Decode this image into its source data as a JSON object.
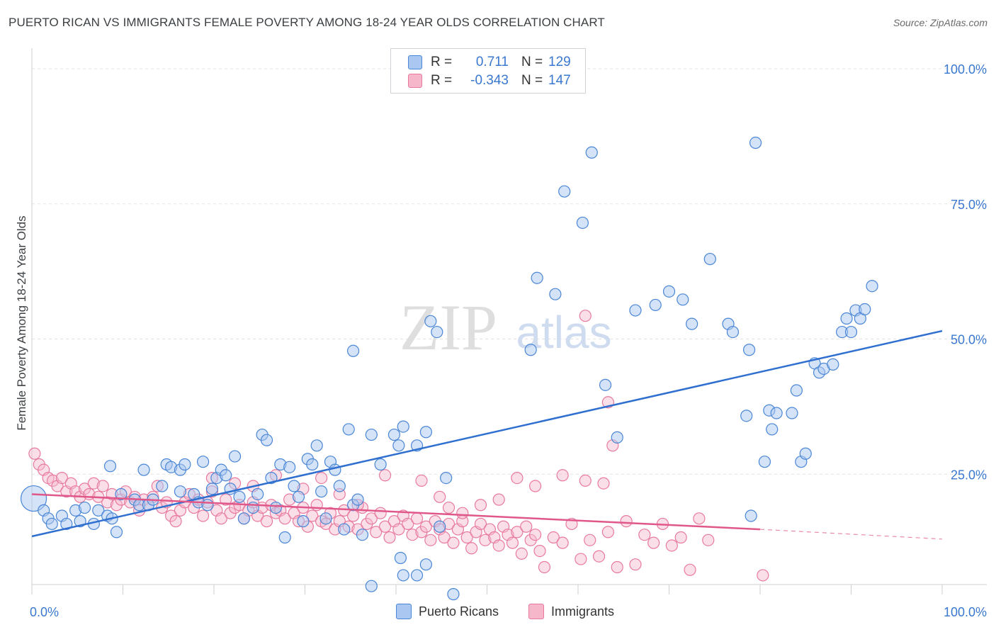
{
  "title": "PUERTO RICAN VS IMMIGRANTS FEMALE POVERTY AMONG 18-24 YEAR OLDS CORRELATION CHART",
  "source": "Source: ZipAtlas.com",
  "watermark": {
    "zip": "ZIP",
    "atlas": "atlas"
  },
  "legend_box": {
    "rows": [
      {
        "r_label": "R =",
        "r_value": "0.711",
        "n_label": "N =",
        "n_value": "129"
      },
      {
        "r_label": "R =",
        "r_value": "-0.343",
        "n_label": "N =",
        "n_value": "147"
      }
    ]
  },
  "bottom_legend": {
    "series1": "Puerto Ricans",
    "series2": "Immigrants"
  },
  "colors": {
    "blue_fill": "#a9c7f0",
    "blue_stroke": "#4a86d6",
    "blue_line": "#2f6fd0",
    "pink_fill": "#f6b7cb",
    "pink_stroke": "#e87a9e",
    "pink_line": "#e0588a",
    "grid": "#e3e3e3",
    "axis_label": "#3a78d0"
  },
  "chart_data": {
    "type": "scatter",
    "title": "PUERTO RICAN VS IMMIGRANTS FEMALE POVERTY AMONG 18-24 YEAR OLDS CORRELATION CHART",
    "xlabel": "",
    "ylabel": "Female Poverty Among 18-24 Year Olds",
    "xlim": [
      0,
      100
    ],
    "ylim": [
      0,
      100
    ],
    "x_tick_labels": [
      "0.0%",
      "100.0%"
    ],
    "y_tick_labels": [
      "25.0%",
      "50.0%",
      "75.0%",
      "100.0%"
    ],
    "y_ticks": [
      25,
      50,
      75,
      100
    ],
    "grid": true,
    "legend_position": "top-center",
    "series": [
      {
        "name": "Puerto Ricans",
        "r": 0.711,
        "n": 129,
        "trend": {
          "x": [
            0,
            100
          ],
          "y": [
            13.5,
            51.5
          ]
        },
        "points": [
          [
            0.2,
            20.5
          ],
          [
            1.3,
            18.3
          ],
          [
            1.8,
            16.8
          ],
          [
            2.2,
            15.8
          ],
          [
            3.3,
            17.3
          ],
          [
            3.8,
            15.8
          ],
          [
            4.8,
            18.3
          ],
          [
            5.3,
            16.3
          ],
          [
            5.8,
            18.8
          ],
          [
            6.8,
            15.8
          ],
          [
            7.3,
            18.3
          ],
          [
            8.3,
            17.3
          ],
          [
            8.6,
            26.5
          ],
          [
            8.8,
            16.8
          ],
          [
            9.3,
            14.3
          ],
          [
            9.8,
            21.3
          ],
          [
            11.3,
            20.3
          ],
          [
            11.8,
            19.3
          ],
          [
            12.3,
            25.8
          ],
          [
            12.8,
            19.3
          ],
          [
            13.3,
            20.3
          ],
          [
            14.3,
            22.8
          ],
          [
            14.8,
            26.8
          ],
          [
            15.3,
            26.3
          ],
          [
            16.3,
            25.8
          ],
          [
            16.8,
            26.8
          ],
          [
            16.3,
            21.8
          ],
          [
            17.8,
            21.3
          ],
          [
            18.3,
            19.8
          ],
          [
            18.8,
            27.3
          ],
          [
            19.3,
            19.3
          ],
          [
            19.8,
            22.3
          ],
          [
            20.3,
            24.3
          ],
          [
            20.8,
            25.8
          ],
          [
            21.3,
            24.8
          ],
          [
            21.8,
            22.3
          ],
          [
            22.3,
            28.3
          ],
          [
            22.8,
            20.8
          ],
          [
            23.3,
            16.8
          ],
          [
            24.3,
            18.8
          ],
          [
            24.8,
            21.3
          ],
          [
            25.3,
            32.3
          ],
          [
            25.8,
            31.3
          ],
          [
            26.3,
            24.3
          ],
          [
            26.8,
            18.8
          ],
          [
            27.3,
            26.8
          ],
          [
            27.8,
            13.3
          ],
          [
            28.3,
            26.3
          ],
          [
            28.8,
            22.8
          ],
          [
            29.3,
            20.8
          ],
          [
            29.8,
            16.3
          ],
          [
            30.3,
            27.8
          ],
          [
            30.8,
            26.8
          ],
          [
            31.3,
            30.3
          ],
          [
            31.8,
            21.8
          ],
          [
            32.3,
            16.8
          ],
          [
            32.8,
            27.3
          ],
          [
            33.3,
            25.8
          ],
          [
            33.8,
            22.8
          ],
          [
            34.3,
            14.8
          ],
          [
            34.8,
            33.3
          ],
          [
            35.3,
            19.3
          ],
          [
            35.8,
            20.3
          ],
          [
            36.3,
            13.8
          ],
          [
            37.3,
            32.3
          ],
          [
            38.3,
            26.8
          ],
          [
            39.8,
            32.3
          ],
          [
            40.3,
            30.3
          ],
          [
            40.8,
            33.8
          ],
          [
            42.3,
            30.3
          ],
          [
            43.3,
            32.8
          ],
          [
            43.8,
            53.3
          ],
          [
            44.8,
            15.3
          ],
          [
            40.5,
            9.5
          ],
          [
            40.8,
            6.3
          ],
          [
            42.3,
            6.3
          ],
          [
            43.3,
            8.3
          ],
          [
            46.3,
            2.8
          ],
          [
            37.3,
            4.3
          ],
          [
            35.3,
            47.8
          ],
          [
            44.5,
            51.3
          ],
          [
            54.8,
            48.0
          ],
          [
            55.5,
            61.3
          ],
          [
            57.5,
            58.3
          ],
          [
            58.5,
            77.3
          ],
          [
            60.5,
            71.5
          ],
          [
            61.5,
            84.5
          ],
          [
            63.0,
            41.5
          ],
          [
            64.3,
            31.8
          ],
          [
            66.3,
            55.3
          ],
          [
            68.5,
            56.3
          ],
          [
            70.0,
            58.8
          ],
          [
            71.5,
            57.3
          ],
          [
            72.5,
            52.8
          ],
          [
            74.5,
            64.8
          ],
          [
            76.5,
            52.8
          ],
          [
            77.0,
            51.3
          ],
          [
            78.5,
            35.8
          ],
          [
            78.8,
            48.0
          ],
          [
            79.5,
            86.3
          ],
          [
            80.5,
            27.3
          ],
          [
            81.0,
            36.8
          ],
          [
            81.3,
            33.3
          ],
          [
            81.8,
            36.3
          ],
          [
            83.5,
            36.3
          ],
          [
            84.0,
            40.5
          ],
          [
            84.5,
            27.3
          ],
          [
            85.0,
            28.8
          ],
          [
            86.0,
            45.5
          ],
          [
            86.5,
            43.8
          ],
          [
            87.0,
            44.5
          ],
          [
            88.0,
            45.3
          ],
          [
            89.0,
            51.3
          ],
          [
            89.5,
            53.8
          ],
          [
            90.0,
            51.3
          ],
          [
            90.5,
            55.3
          ],
          [
            91.0,
            53.8
          ],
          [
            91.5,
            55.5
          ],
          [
            92.3,
            59.8
          ],
          [
            79.0,
            17.3
          ],
          [
            45.5,
            24.3
          ]
        ]
      },
      {
        "name": "Immigrants",
        "r": -0.343,
        "n": 147,
        "trend": {
          "x": [
            0,
            80
          ],
          "y": [
            21.3,
            14.8
          ]
        },
        "trend_dashed": {
          "x": [
            80,
            100
          ],
          "y": [
            14.8,
            13.0
          ]
        },
        "points": [
          [
            0.3,
            28.8
          ],
          [
            0.8,
            26.8
          ],
          [
            1.3,
            25.8
          ],
          [
            1.8,
            24.3
          ],
          [
            2.3,
            23.8
          ],
          [
            2.8,
            22.8
          ],
          [
            3.3,
            24.3
          ],
          [
            3.8,
            21.8
          ],
          [
            4.3,
            23.3
          ],
          [
            4.8,
            21.8
          ],
          [
            5.3,
            20.8
          ],
          [
            5.8,
            22.3
          ],
          [
            6.3,
            21.3
          ],
          [
            6.8,
            23.3
          ],
          [
            7.3,
            20.8
          ],
          [
            7.8,
            22.8
          ],
          [
            8.3,
            19.8
          ],
          [
            8.8,
            21.3
          ],
          [
            9.3,
            19.3
          ],
          [
            9.8,
            20.3
          ],
          [
            10.3,
            21.8
          ],
          [
            10.8,
            19.8
          ],
          [
            11.3,
            20.8
          ],
          [
            11.8,
            18.3
          ],
          [
            12.3,
            20.3
          ],
          [
            12.8,
            19.3
          ],
          [
            13.3,
            20.8
          ],
          [
            13.8,
            22.8
          ],
          [
            14.3,
            18.8
          ],
          [
            14.8,
            19.8
          ],
          [
            15.3,
            17.3
          ],
          [
            15.8,
            16.3
          ],
          [
            16.3,
            18.3
          ],
          [
            16.8,
            19.8
          ],
          [
            17.3,
            21.3
          ],
          [
            17.8,
            18.8
          ],
          [
            18.3,
            20.3
          ],
          [
            18.8,
            17.3
          ],
          [
            19.3,
            19.8
          ],
          [
            19.8,
            21.8
          ],
          [
            20.3,
            18.3
          ],
          [
            20.8,
            16.8
          ],
          [
            21.3,
            20.3
          ],
          [
            21.8,
            17.8
          ],
          [
            22.3,
            18.8
          ],
          [
            22.8,
            19.3
          ],
          [
            23.3,
            16.8
          ],
          [
            23.8,
            18.3
          ],
          [
            24.3,
            19.8
          ],
          [
            24.8,
            17.3
          ],
          [
            25.3,
            18.8
          ],
          [
            25.8,
            16.3
          ],
          [
            26.3,
            19.3
          ],
          [
            26.8,
            17.8
          ],
          [
            27.3,
            18.3
          ],
          [
            27.8,
            16.8
          ],
          [
            28.3,
            20.3
          ],
          [
            28.8,
            17.8
          ],
          [
            29.3,
            16.3
          ],
          [
            29.8,
            18.8
          ],
          [
            30.3,
            15.3
          ],
          [
            30.8,
            17.3
          ],
          [
            31.3,
            19.3
          ],
          [
            31.8,
            16.3
          ],
          [
            32.3,
            15.8
          ],
          [
            32.8,
            17.8
          ],
          [
            33.3,
            14.8
          ],
          [
            33.8,
            16.3
          ],
          [
            34.3,
            18.3
          ],
          [
            34.8,
            15.3
          ],
          [
            35.3,
            17.3
          ],
          [
            35.8,
            14.8
          ],
          [
            36.3,
            18.8
          ],
          [
            36.8,
            15.8
          ],
          [
            37.3,
            16.8
          ],
          [
            37.8,
            14.3
          ],
          [
            38.3,
            17.8
          ],
          [
            38.8,
            15.3
          ],
          [
            39.3,
            13.3
          ],
          [
            39.8,
            16.3
          ],
          [
            40.3,
            14.8
          ],
          [
            40.8,
            17.3
          ],
          [
            41.3,
            15.8
          ],
          [
            41.8,
            13.8
          ],
          [
            42.3,
            16.8
          ],
          [
            42.8,
            14.3
          ],
          [
            43.3,
            15.3
          ],
          [
            43.8,
            12.8
          ],
          [
            44.3,
            16.3
          ],
          [
            44.8,
            14.8
          ],
          [
            45.3,
            13.3
          ],
          [
            45.8,
            15.8
          ],
          [
            46.3,
            12.3
          ],
          [
            46.8,
            14.8
          ],
          [
            47.3,
            16.3
          ],
          [
            47.8,
            13.3
          ],
          [
            48.3,
            11.3
          ],
          [
            48.8,
            14.3
          ],
          [
            49.3,
            15.8
          ],
          [
            49.8,
            12.8
          ],
          [
            50.3,
            14.8
          ],
          [
            50.8,
            13.3
          ],
          [
            51.3,
            11.8
          ],
          [
            51.8,
            15.3
          ],
          [
            52.3,
            13.8
          ],
          [
            52.8,
            12.3
          ],
          [
            53.3,
            14.3
          ],
          [
            53.8,
            10.3
          ],
          [
            54.3,
            15.3
          ],
          [
            54.8,
            12.8
          ],
          [
            55.3,
            13.8
          ],
          [
            55.8,
            10.8
          ],
          [
            57.3,
            13.3
          ],
          [
            58.3,
            12.3
          ],
          [
            59.3,
            15.8
          ],
          [
            60.3,
            9.3
          ],
          [
            61.3,
            12.8
          ],
          [
            62.3,
            9.8
          ],
          [
            63.3,
            14.3
          ],
          [
            64.3,
            7.8
          ],
          [
            65.3,
            16.3
          ],
          [
            66.3,
            8.3
          ],
          [
            67.3,
            13.8
          ],
          [
            68.3,
            12.3
          ],
          [
            69.3,
            15.8
          ],
          [
            70.3,
            11.8
          ],
          [
            71.3,
            13.3
          ],
          [
            72.3,
            7.3
          ],
          [
            73.3,
            16.8
          ],
          [
            74.3,
            12.8
          ],
          [
            63.3,
            38.3
          ],
          [
            63.8,
            30.3
          ],
          [
            58.3,
            24.8
          ],
          [
            60.8,
            23.8
          ],
          [
            62.8,
            23.3
          ],
          [
            55.3,
            22.8
          ],
          [
            53.3,
            24.3
          ],
          [
            51.3,
            20.3
          ],
          [
            49.3,
            19.3
          ],
          [
            47.3,
            17.8
          ],
          [
            45.8,
            18.8
          ],
          [
            44.8,
            20.8
          ],
          [
            42.8,
            23.8
          ],
          [
            38.8,
            24.8
          ],
          [
            35.8,
            19.3
          ],
          [
            33.8,
            21.3
          ],
          [
            31.8,
            24.3
          ],
          [
            29.8,
            22.3
          ],
          [
            26.8,
            24.8
          ],
          [
            24.3,
            22.8
          ],
          [
            22.3,
            23.3
          ],
          [
            19.8,
            24.3
          ],
          [
            60.8,
            54.3
          ],
          [
            56.3,
            7.8
          ],
          [
            80.3,
            6.3
          ]
        ]
      }
    ]
  }
}
